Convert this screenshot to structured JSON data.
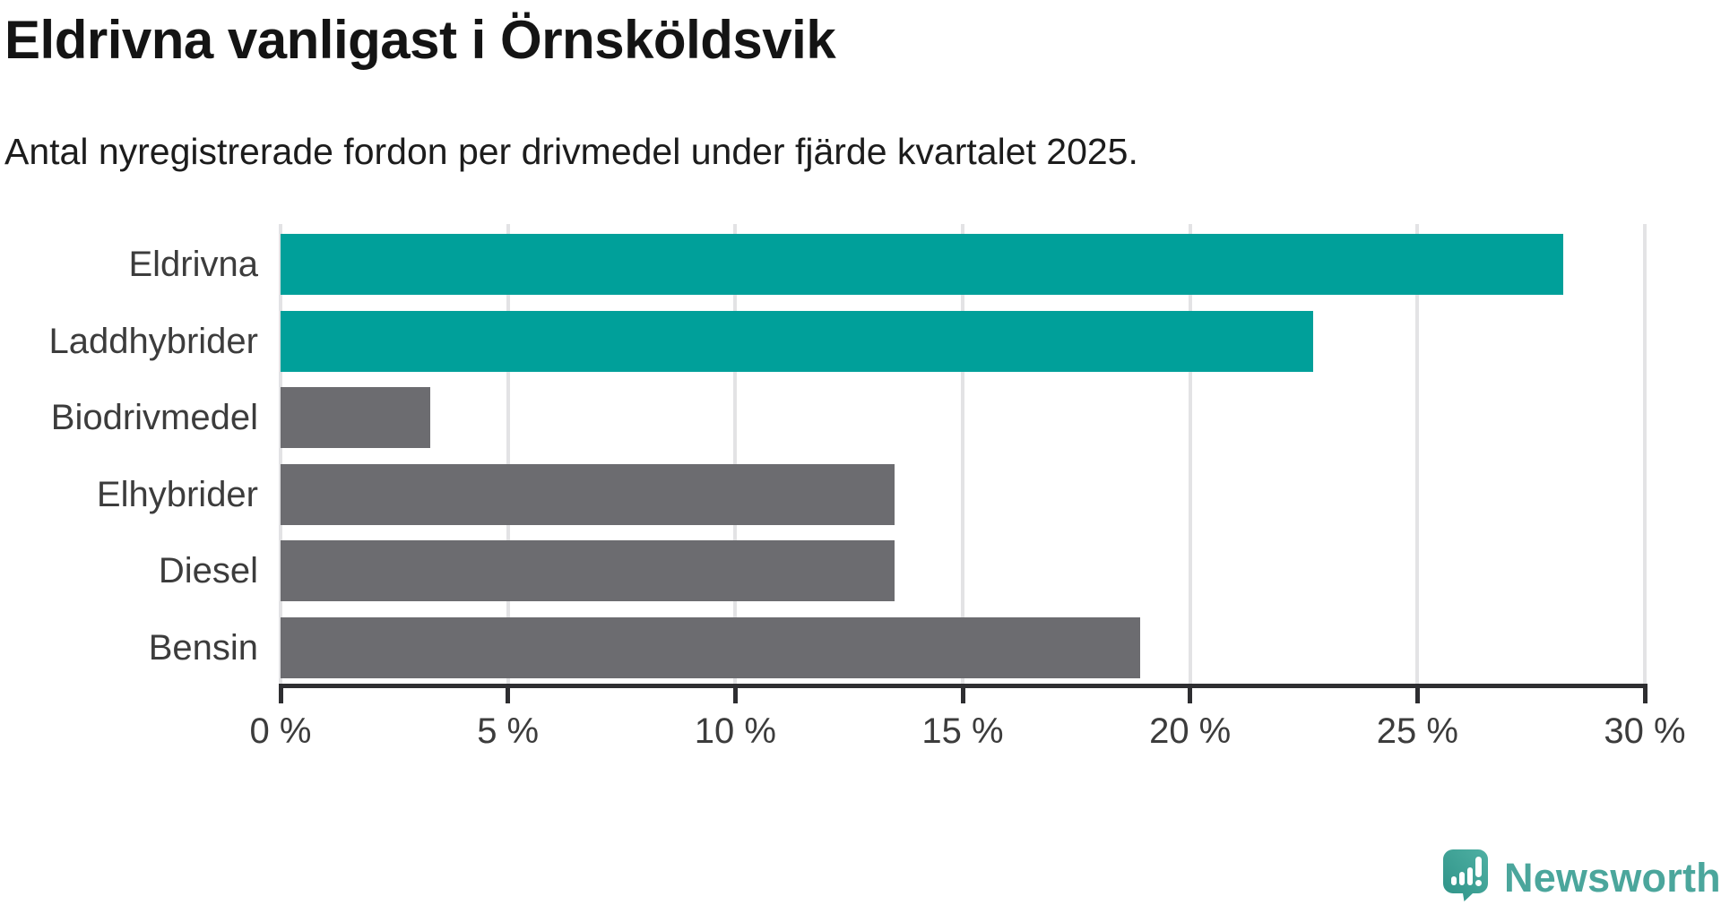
{
  "header": {
    "title": "Eldrivna vanligast i Örnsköldsvik",
    "subtitle": "Antal nyregistrerade fordon per drivmedel under fjärde kvartalet 2025."
  },
  "chart_data": {
    "type": "bar",
    "orientation": "horizontal",
    "title": "Eldrivna vanligast i Örnsköldsvik",
    "subtitle": "Antal nyregistrerade fordon per drivmedel under fjärde kvartalet 2025.",
    "categories": [
      "Eldrivna",
      "Laddhybrider",
      "Biodrivmedel",
      "Elhybrider",
      "Diesel",
      "Bensin"
    ],
    "values": [
      28.2,
      22.7,
      3.3,
      13.5,
      13.5,
      18.9
    ],
    "unit": "%",
    "xlim": [
      0,
      30
    ],
    "x_tick_values": [
      0,
      5,
      10,
      15,
      20,
      25,
      30
    ],
    "x_tick_labels": [
      "0 %",
      "5 %",
      "10 %",
      "15 %",
      "20 %",
      "25 %",
      "30 %"
    ],
    "grid": "vertical-gridlines-on",
    "legend": "none",
    "bar_colors": [
      "#00a09a",
      "#00a09a",
      "#6c6c70",
      "#6c6c70",
      "#6c6c70",
      "#6c6c70"
    ],
    "highlight_color": "#00a09a",
    "default_color": "#6c6c70",
    "axis_color": "#2e2e31",
    "gridline_color": "#e3e3e5",
    "label_color": "#3c3c3c"
  },
  "branding": {
    "logo_text": "Newsworthy",
    "logo_text_color": "#4ba69c",
    "icon": "newsworthy-speech-bubble-chart-icon",
    "icon_color_top": "#4fb0a3",
    "icon_color_bottom": "#2e9287"
  }
}
